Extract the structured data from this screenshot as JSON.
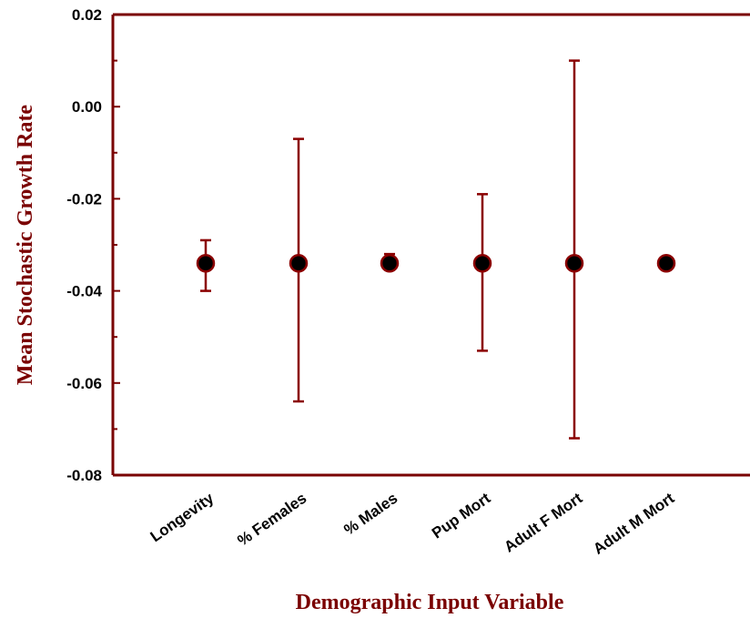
{
  "colors": {
    "axis": "#7a0000",
    "errorbar": "#8b0000",
    "marker_fill": "#000000",
    "marker_edge": "#8b0000",
    "title": "#7a0000"
  },
  "chart_data": {
    "type": "scatter",
    "title": "",
    "xlabel": "Demographic Input Variable",
    "ylabel": "Mean Stochastic Growth Rate",
    "ylim": [
      -0.08,
      0.02
    ],
    "yticks": [
      "0.02",
      "0.00",
      "-0.02",
      "-0.04",
      "-0.06",
      "-0.08"
    ],
    "categories": [
      "Longevity",
      "% Females",
      "% Males",
      "Pup Mort",
      "Adult F Mort",
      "Adult M Mort"
    ],
    "values": [
      -0.034,
      -0.034,
      -0.034,
      -0.034,
      -0.034,
      -0.034
    ],
    "error_upper": [
      -0.029,
      -0.007,
      -0.032,
      -0.019,
      0.01,
      -0.034
    ],
    "error_lower": [
      -0.04,
      -0.064,
      -0.034,
      -0.053,
      -0.072,
      -0.034
    ],
    "grid": false,
    "legend": "none"
  }
}
